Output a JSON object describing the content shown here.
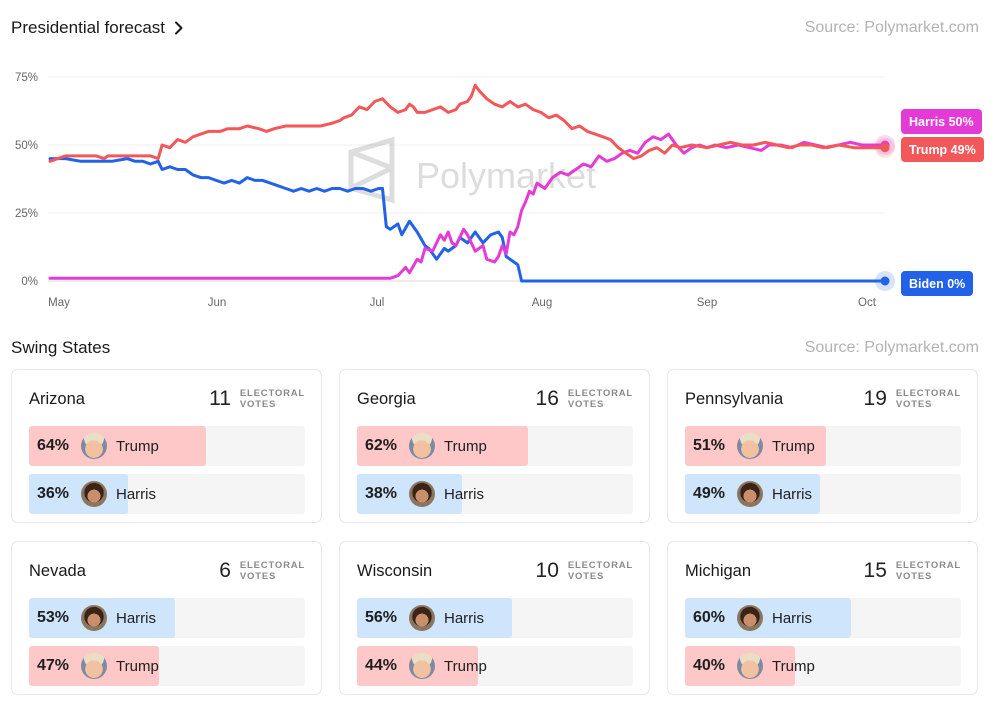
{
  "forecast": {
    "title": "Presidential forecast",
    "source": "Source: Polymarket.com"
  },
  "chart_data": {
    "type": "line",
    "watermark": "Polymarket",
    "y_ticks": [
      "75%",
      "50%",
      "25%",
      "0%"
    ],
    "ylim": [
      0,
      75
    ],
    "x_ticks": [
      "May",
      "Jun",
      "Jul",
      "Aug",
      "Sep",
      "Oct"
    ],
    "xlim_days": [
      0,
      160
    ],
    "x_tick_days": [
      0,
      31,
      61,
      92,
      123,
      153
    ],
    "series": [
      {
        "name": "Trump",
        "end_label": "Trump 49%",
        "color": "#f2575a",
        "points": [
          [
            0,
            44
          ],
          [
            2,
            45
          ],
          [
            4,
            46
          ],
          [
            8,
            46
          ],
          [
            12,
            46
          ],
          [
            14,
            45
          ],
          [
            15,
            46
          ],
          [
            18,
            46
          ],
          [
            20,
            46
          ],
          [
            24,
            46
          ],
          [
            26,
            46
          ],
          [
            28,
            45
          ],
          [
            29,
            50
          ],
          [
            31,
            49
          ],
          [
            33,
            52
          ],
          [
            35,
            51
          ],
          [
            37,
            53
          ],
          [
            39,
            54
          ],
          [
            41,
            55
          ],
          [
            44,
            55
          ],
          [
            46,
            56
          ],
          [
            49,
            56
          ],
          [
            51,
            57
          ],
          [
            54,
            56
          ],
          [
            56,
            55
          ],
          [
            58,
            56
          ],
          [
            61,
            57
          ],
          [
            64,
            57
          ],
          [
            67,
            57
          ],
          [
            70,
            57
          ],
          [
            73,
            58
          ],
          [
            75,
            59
          ],
          [
            76,
            60
          ],
          [
            78,
            61
          ],
          [
            80,
            64
          ],
          [
            82,
            63
          ],
          [
            84,
            66
          ],
          [
            86,
            67
          ],
          [
            88,
            64
          ],
          [
            90,
            62
          ],
          [
            92,
            63
          ],
          [
            93,
            65
          ],
          [
            94,
            64
          ],
          [
            95,
            62
          ],
          [
            97,
            62
          ],
          [
            99,
            63
          ],
          [
            101,
            64
          ],
          [
            103,
            62
          ],
          [
            105,
            63
          ],
          [
            106,
            65
          ],
          [
            108,
            66
          ],
          [
            109,
            68
          ],
          [
            110,
            72
          ],
          [
            111,
            70
          ],
          [
            113,
            67
          ],
          [
            115,
            65
          ],
          [
            117,
            64
          ],
          [
            119,
            66
          ],
          [
            121,
            64
          ],
          [
            123,
            65
          ],
          [
            125,
            63
          ],
          [
            127,
            62
          ],
          [
            129,
            60
          ],
          [
            131,
            61
          ],
          [
            133,
            59
          ],
          [
            135,
            56
          ],
          [
            137,
            57
          ],
          [
            139,
            55
          ],
          [
            141,
            54
          ],
          [
            143,
            53
          ],
          [
            145,
            52
          ],
          [
            147,
            49
          ],
          [
            149,
            47
          ],
          [
            151,
            45
          ],
          [
            153,
            46
          ],
          [
            155,
            48
          ],
          [
            157,
            49
          ],
          [
            159,
            47
          ],
          [
            161,
            50
          ],
          [
            163,
            49
          ],
          [
            166,
            50
          ],
          [
            170,
            49
          ],
          [
            173,
            50
          ],
          [
            176,
            51
          ],
          [
            179,
            50
          ],
          [
            182,
            50
          ],
          [
            185,
            51
          ],
          [
            188,
            50
          ],
          [
            191,
            49
          ],
          [
            194,
            50
          ],
          [
            197,
            50
          ],
          [
            200,
            49
          ],
          [
            204,
            50
          ],
          [
            208,
            49
          ],
          [
            212,
            49
          ],
          [
            216,
            49
          ]
        ]
      },
      {
        "name": "Harris",
        "end_label": "Harris 50%",
        "color": "#e53bd6",
        "points": [
          [
            0,
            1
          ],
          [
            20,
            1
          ],
          [
            40,
            1
          ],
          [
            60,
            1
          ],
          [
            75,
            1
          ],
          [
            85,
            1
          ],
          [
            88,
            1
          ],
          [
            90,
            2
          ],
          [
            92,
            5
          ],
          [
            93,
            3
          ],
          [
            95,
            8
          ],
          [
            96,
            7
          ],
          [
            97,
            12
          ],
          [
            99,
            11
          ],
          [
            100,
            14
          ],
          [
            101,
            17
          ],
          [
            102,
            15
          ],
          [
            103,
            18
          ],
          [
            104,
            14
          ],
          [
            105,
            13
          ],
          [
            106,
            16
          ],
          [
            107,
            19
          ],
          [
            108,
            17
          ],
          [
            110,
            11
          ],
          [
            112,
            13
          ],
          [
            113,
            8
          ],
          [
            115,
            7
          ],
          [
            116,
            9
          ],
          [
            117,
            13
          ],
          [
            118,
            10
          ],
          [
            119,
            18
          ],
          [
            120,
            17
          ],
          [
            121,
            20
          ],
          [
            122,
            26
          ],
          [
            123,
            29
          ],
          [
            124,
            33
          ],
          [
            125,
            32
          ],
          [
            126,
            36
          ],
          [
            128,
            34
          ],
          [
            130,
            38
          ],
          [
            132,
            40
          ],
          [
            134,
            39
          ],
          [
            136,
            41
          ],
          [
            138,
            43
          ],
          [
            140,
            42
          ],
          [
            142,
            46
          ],
          [
            144,
            44
          ],
          [
            146,
            45
          ],
          [
            148,
            47
          ],
          [
            150,
            48
          ],
          [
            152,
            47
          ],
          [
            154,
            51
          ],
          [
            156,
            53
          ],
          [
            158,
            52
          ],
          [
            160,
            54
          ],
          [
            162,
            50
          ],
          [
            164,
            47
          ],
          [
            166,
            49
          ],
          [
            168,
            50
          ],
          [
            170,
            49
          ],
          [
            172,
            50
          ],
          [
            175,
            49
          ],
          [
            178,
            50
          ],
          [
            181,
            49
          ],
          [
            184,
            48
          ],
          [
            186,
            50
          ],
          [
            189,
            50
          ],
          [
            192,
            49
          ],
          [
            195,
            51
          ],
          [
            198,
            50
          ],
          [
            201,
            49
          ],
          [
            204,
            50
          ],
          [
            207,
            51
          ],
          [
            210,
            50
          ],
          [
            213,
            50
          ],
          [
            216,
            50
          ]
        ]
      },
      {
        "name": "Biden",
        "end_label": "Biden 0%",
        "color": "#2262e8",
        "points": [
          [
            0,
            45
          ],
          [
            4,
            45
          ],
          [
            8,
            44
          ],
          [
            12,
            44
          ],
          [
            16,
            44
          ],
          [
            20,
            45
          ],
          [
            22,
            44
          ],
          [
            24,
            44
          ],
          [
            26,
            43
          ],
          [
            28,
            44
          ],
          [
            29,
            41
          ],
          [
            31,
            42
          ],
          [
            33,
            41
          ],
          [
            35,
            41
          ],
          [
            37,
            39
          ],
          [
            39,
            38
          ],
          [
            41,
            38
          ],
          [
            43,
            37
          ],
          [
            45,
            36
          ],
          [
            47,
            37
          ],
          [
            49,
            36
          ],
          [
            51,
            38
          ],
          [
            53,
            37
          ],
          [
            55,
            37
          ],
          [
            57,
            36
          ],
          [
            59,
            35
          ],
          [
            61,
            34
          ],
          [
            63,
            33
          ],
          [
            65,
            34
          ],
          [
            67,
            33
          ],
          [
            69,
            34
          ],
          [
            71,
            33
          ],
          [
            73,
            34
          ],
          [
            75,
            34
          ],
          [
            77,
            33
          ],
          [
            79,
            34
          ],
          [
            81,
            34
          ],
          [
            83,
            33
          ],
          [
            85,
            34
          ],
          [
            86,
            34
          ],
          [
            87,
            20
          ],
          [
            88,
            19
          ],
          [
            90,
            21
          ],
          [
            91,
            17
          ],
          [
            93,
            22
          ],
          [
            95,
            18
          ],
          [
            97,
            13
          ],
          [
            98,
            12
          ],
          [
            99,
            10
          ],
          [
            100,
            8
          ],
          [
            102,
            12
          ],
          [
            103,
            11
          ],
          [
            105,
            13
          ],
          [
            106,
            16
          ],
          [
            108,
            14
          ],
          [
            110,
            18
          ],
          [
            112,
            14
          ],
          [
            114,
            17
          ],
          [
            116,
            18
          ],
          [
            117,
            16
          ],
          [
            118,
            9
          ],
          [
            120,
            7
          ],
          [
            121,
            6
          ],
          [
            122,
            0
          ],
          [
            124,
            0
          ],
          [
            150,
            0
          ],
          [
            180,
            0
          ],
          [
            200,
            0
          ],
          [
            216,
            0
          ]
        ]
      }
    ]
  },
  "swing": {
    "title": "Swing States",
    "source": "Source: Polymarket.com",
    "ev_label_1": "ELECTORAL",
    "ev_label_2": "VOTES",
    "states": [
      {
        "name": "Arizona",
        "ev": "11",
        "rows": [
          {
            "cand": "Trump",
            "pct": "64%",
            "value": 64
          },
          {
            "cand": "Harris",
            "pct": "36%",
            "value": 36
          }
        ]
      },
      {
        "name": "Georgia",
        "ev": "16",
        "rows": [
          {
            "cand": "Trump",
            "pct": "62%",
            "value": 62
          },
          {
            "cand": "Harris",
            "pct": "38%",
            "value": 38
          }
        ]
      },
      {
        "name": "Pennsylvania",
        "ev": "19",
        "rows": [
          {
            "cand": "Trump",
            "pct": "51%",
            "value": 51
          },
          {
            "cand": "Harris",
            "pct": "49%",
            "value": 49
          }
        ]
      },
      {
        "name": "Nevada",
        "ev": "6",
        "rows": [
          {
            "cand": "Harris",
            "pct": "53%",
            "value": 53
          },
          {
            "cand": "Trump",
            "pct": "47%",
            "value": 47
          }
        ]
      },
      {
        "name": "Wisconsin",
        "ev": "10",
        "rows": [
          {
            "cand": "Harris",
            "pct": "56%",
            "value": 56
          },
          {
            "cand": "Trump",
            "pct": "44%",
            "value": 44
          }
        ]
      },
      {
        "name": "Michigan",
        "ev": "15",
        "rows": [
          {
            "cand": "Harris",
            "pct": "60%",
            "value": 60
          },
          {
            "cand": "Trump",
            "pct": "40%",
            "value": 40
          }
        ]
      }
    ]
  }
}
